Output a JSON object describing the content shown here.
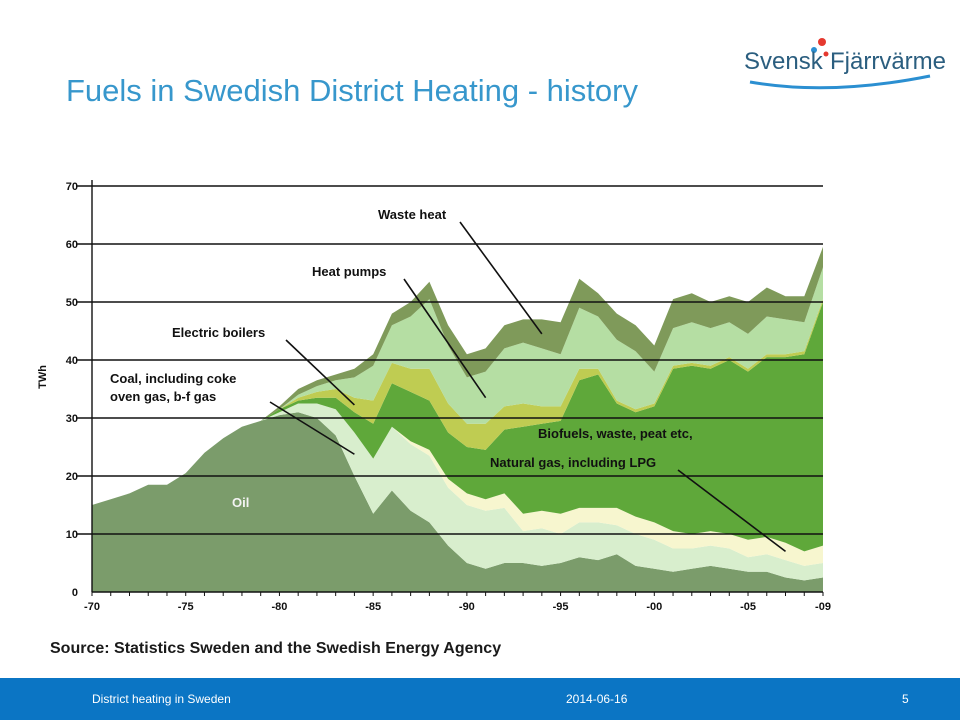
{
  "logo": {
    "text_left": "Svensk",
    "text_right": "Fjärrvärme"
  },
  "slide_title": "Fuels in Swedish District Heating - history",
  "source": "Source: Statistics Sweden and the Swedish Energy Agency",
  "footer": {
    "left": "District heating in Sweden",
    "date": "2014-06-16",
    "page": "5"
  },
  "colors": {
    "oil": "#7b9c6b",
    "coal": "#d8eecd",
    "natural_gas": "#f7f6cf",
    "biofuels": "#5fa83a",
    "electric_boilers": "#bfcc52",
    "heat_pumps": "#b5dea3",
    "waste_heat": "#7f9a5a",
    "axis": "#111111",
    "title": "#3797cc",
    "footer_bar": "#0b75c4"
  },
  "chart_data": {
    "type": "area",
    "stacked": true,
    "ylabel": "TWh",
    "ylim": [
      0,
      70
    ],
    "yticks": [
      0,
      10,
      20,
      30,
      40,
      50,
      60,
      70
    ],
    "xlim": [
      1970,
      2009
    ],
    "xtick_values": [
      1970,
      1975,
      1980,
      1985,
      1990,
      1995,
      2000,
      2005,
      2009
    ],
    "xtick_labels": [
      "-70",
      "-75",
      "-80",
      "-85",
      "-90",
      "-95",
      "-00",
      "-05",
      "-09"
    ],
    "grid": "horizontal",
    "x": [
      1970,
      1971,
      1972,
      1973,
      1974,
      1975,
      1976,
      1977,
      1978,
      1979,
      1980,
      1981,
      1982,
      1983,
      1984,
      1985,
      1986,
      1987,
      1988,
      1989,
      1990,
      1991,
      1992,
      1993,
      1994,
      1995,
      1996,
      1997,
      1998,
      1999,
      2000,
      2001,
      2002,
      2003,
      2004,
      2005,
      2006,
      2007,
      2008,
      2009
    ],
    "series": [
      {
        "key": "oil",
        "label": "Oil",
        "values": [
          15,
          16,
          17,
          18.5,
          18.5,
          20.5,
          24,
          26.5,
          28.5,
          29.5,
          30.5,
          31,
          30,
          27,
          20,
          13.5,
          17.5,
          14,
          12,
          8,
          5,
          4,
          5,
          5,
          4.5,
          5,
          6,
          5.5,
          6.5,
          4.5,
          4,
          3.5,
          4,
          4.5,
          4,
          3.5,
          3.5,
          2.5,
          2,
          2.5
        ]
      },
      {
        "key": "coal",
        "label": "Coal, including coke oven gas, b-f gas",
        "values": [
          0,
          0,
          0,
          0,
          0,
          0,
          0,
          0,
          0,
          0,
          0.5,
          1.5,
          2.5,
          4.5,
          7.5,
          9.5,
          11,
          11.5,
          11.5,
          10,
          10,
          10,
          9.5,
          5.5,
          6.5,
          5,
          6,
          6.5,
          5,
          5.5,
          5,
          4,
          3.5,
          3.5,
          3.5,
          2.5,
          3,
          3,
          2.5,
          2.5
        ]
      },
      {
        "key": "natural_gas",
        "label": "Natural gas, including LPG",
        "values": [
          0,
          0,
          0,
          0,
          0,
          0,
          0,
          0,
          0,
          0,
          0,
          0,
          0,
          0,
          0,
          0,
          0,
          0.5,
          1,
          1.5,
          2,
          2,
          2.5,
          3,
          3,
          3.5,
          2.5,
          2.5,
          3,
          3,
          3,
          3,
          2.5,
          2.5,
          2.5,
          3,
          3,
          3,
          2.5,
          3
        ]
      },
      {
        "key": "biofuels",
        "label": "Biofuels, waste, peat etc,",
        "values": [
          0,
          0,
          0,
          0,
          0,
          0,
          0,
          0,
          0,
          0,
          0.5,
          0.5,
          1,
          2,
          3.5,
          6,
          7.5,
          8.5,
          8.5,
          8,
          8,
          8.5,
          11,
          15,
          15,
          16,
          22,
          23,
          18,
          18,
          20,
          28,
          29,
          28,
          30,
          29,
          31,
          32,
          34,
          42
        ]
      },
      {
        "key": "electric_boilers",
        "label": "Electric boilers",
        "values": [
          0,
          0,
          0,
          0,
          0,
          0,
          0,
          0,
          0,
          0,
          0,
          0.5,
          1,
          1.5,
          2.5,
          4,
          3.5,
          4,
          5.5,
          5,
          4,
          4.5,
          4,
          4,
          3,
          2.5,
          2,
          1,
          0.5,
          0.5,
          0.5,
          0.5,
          0.5,
          0.5,
          0.5,
          0.5,
          0.5,
          0.5,
          0.5,
          0.5
        ]
      },
      {
        "key": "heat_pumps",
        "label": "Heat pumps",
        "values": [
          0,
          0,
          0,
          0,
          0,
          0,
          0,
          0,
          0,
          0,
          0,
          0.5,
          1,
          1.5,
          3.5,
          6,
          6.5,
          9,
          12,
          10,
          8,
          9,
          10,
          10.5,
          10,
          9,
          10.5,
          9,
          10.5,
          10,
          5.5,
          6.5,
          7,
          6.5,
          6,
          6,
          6.5,
          6,
          5,
          5.5
        ]
      },
      {
        "key": "waste_heat",
        "label": "Waste heat",
        "values": [
          0,
          0,
          0,
          0,
          0,
          0,
          0,
          0,
          0,
          0,
          0.5,
          1,
          1,
          1,
          1.5,
          2,
          2,
          2.5,
          3,
          3.5,
          4,
          4,
          4,
          4,
          5,
          5.5,
          5,
          4,
          4.5,
          4.5,
          4.5,
          5,
          5,
          4.5,
          4.5,
          5.5,
          5,
          4,
          4.5,
          3.5
        ]
      }
    ],
    "annotations": [
      {
        "text": "Waste heat",
        "series": "waste_heat"
      },
      {
        "text": "Heat pumps",
        "series": "heat_pumps"
      },
      {
        "text": "Electric boilers",
        "series": "electric_boilers"
      },
      {
        "text": "Coal, including coke",
        "series": "coal"
      },
      {
        "text": "oven gas, b-f gas",
        "series": "coal"
      },
      {
        "text": "Oil",
        "series": "oil"
      },
      {
        "text": "Biofuels, waste, peat etc,",
        "series": "biofuels"
      },
      {
        "text": "Natural gas, including LPG",
        "series": "natural_gas"
      }
    ]
  }
}
